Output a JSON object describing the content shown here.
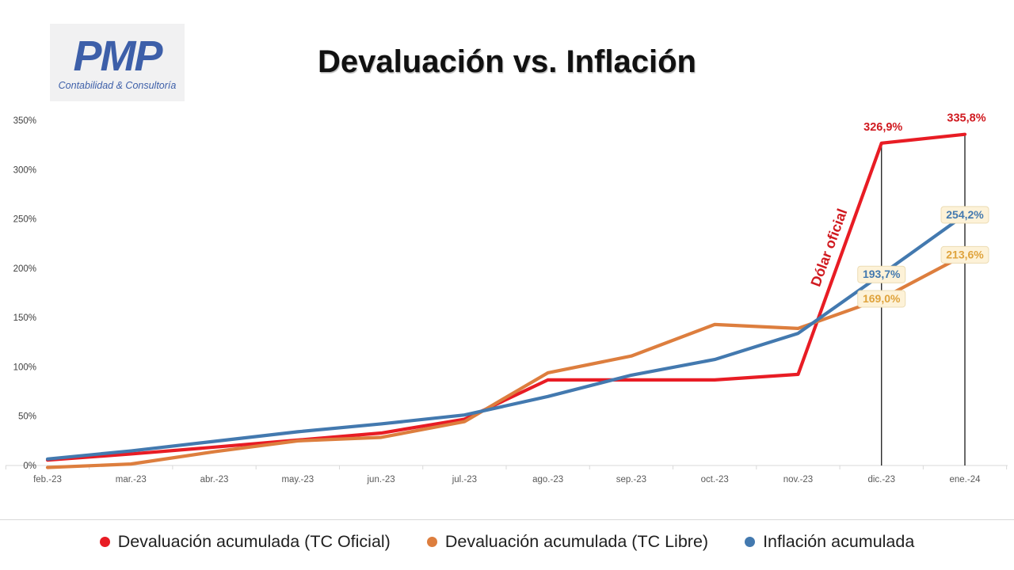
{
  "logo": {
    "name": "PMP",
    "tagline": "Contabilidad & Consultoría"
  },
  "title": "Devaluación vs. Inflación",
  "legend": [
    {
      "label": "Devaluación acumulada (TC Oficial)",
      "color": "#e81c24"
    },
    {
      "label": "Devaluación acumulada (TC Libre)",
      "color": "#dd7e3e"
    },
    {
      "label": "Inflación acumulada",
      "color": "#4379af"
    }
  ],
  "chart_data": {
    "type": "line",
    "title": "Devaluación vs. Inflación",
    "categories": [
      "feb.-23",
      "mar.-23",
      "abr.-23",
      "may.-23",
      "jun.-23",
      "jul.-23",
      "ago.-23",
      "sep.-23",
      "oct.-23",
      "nov.-23",
      "dic.-23",
      "ene.-24"
    ],
    "series": [
      {
        "name": "Devaluación acumulada (TC Oficial)",
        "color": "#e81c24",
        "label_color": "#d01a20",
        "values": [
          5.5,
          11.7,
          18.6,
          25.8,
          32.9,
          46.9,
          86.8,
          86.8,
          86.8,
          92.4,
          326.9,
          335.8
        ]
      },
      {
        "name": "Devaluación acumulada (TC Libre)",
        "color": "#dd7e3e",
        "label_color": "#dfa33c",
        "values": [
          -2.0,
          1.5,
          14.0,
          25.0,
          28.5,
          44.5,
          94.0,
          111.0,
          143.0,
          139.0,
          169.0,
          213.6
        ]
      },
      {
        "name": "Inflación acumulada",
        "color": "#4379af",
        "label_color": "#4379af",
        "values": [
          6.6,
          14.8,
          24.5,
          34.2,
          42.2,
          51.2,
          70.0,
          91.6,
          107.5,
          134.0,
          193.7,
          254.2
        ]
      }
    ],
    "y_axis": {
      "min": 0,
      "max": 350,
      "step": 50,
      "suffix": "%"
    },
    "grid": false,
    "legend_position": "bottom",
    "vertical_marker_months": [
      "dic.-23",
      "ene.-24"
    ],
    "annotations": [
      {
        "text": "326,9%",
        "series": 0,
        "month": "dic.-23",
        "boxed": false
      },
      {
        "text": "335,8%",
        "series": 0,
        "month": "ene.-24",
        "boxed": false
      },
      {
        "text": "169,0%",
        "series": 1,
        "month": "dic.-23",
        "boxed": true
      },
      {
        "text": "213,6%",
        "series": 1,
        "month": "ene.-24",
        "boxed": true
      },
      {
        "text": "193,7%",
        "series": 2,
        "month": "dic.-23",
        "boxed": true
      },
      {
        "text": "254,2%",
        "series": 2,
        "month": "ene.-24",
        "boxed": true
      }
    ],
    "callout": {
      "text": "Dólar oficial",
      "color": "#d01a20"
    }
  },
  "colors": {
    "annotation_box_bg": "#fdf2d8",
    "annotation_box_border": "#ecdcb4",
    "axis_label": "#595959",
    "y_label": "#3f3f3f",
    "baseline": "#d9d9d9",
    "marker_line": "#1a1a1a"
  }
}
